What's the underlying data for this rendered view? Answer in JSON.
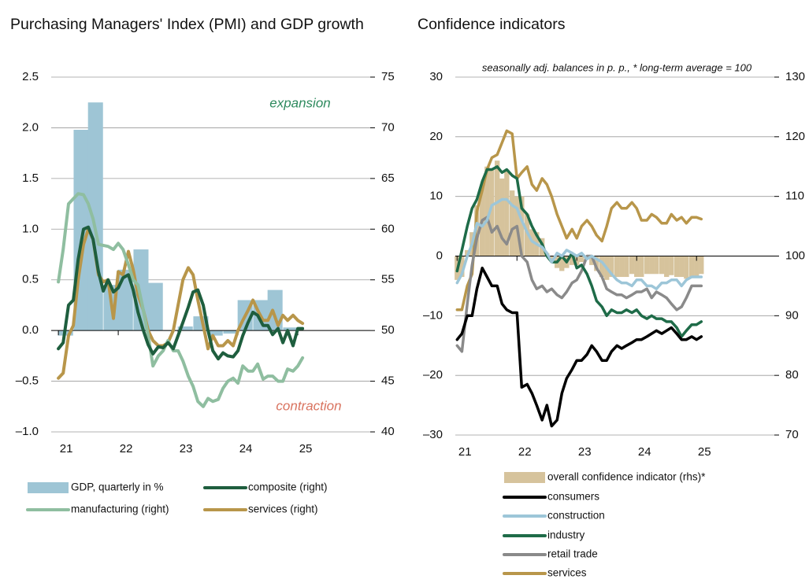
{
  "chart_data": [
    {
      "type": "combo",
      "title": "Purchasing Managers' Index (PMI) and GDP growth",
      "annotations": [
        {
          "text": "expansion",
          "color": "#2e8a5e"
        },
        {
          "text": "contraction",
          "color": "#d9735f"
        }
      ],
      "x": [
        2021.0,
        2021.08,
        2021.17,
        2021.25,
        2021.33,
        2021.42,
        2021.5,
        2021.58,
        2021.67,
        2021.75,
        2021.83,
        2021.92,
        2022.0,
        2022.08,
        2022.17,
        2022.25,
        2022.33,
        2022.42,
        2022.5,
        2022.58,
        2022.67,
        2022.75,
        2022.83,
        2022.92,
        2023.0,
        2023.08,
        2023.17,
        2023.25,
        2023.33,
        2023.42,
        2023.5,
        2023.58,
        2023.67,
        2023.75,
        2023.83,
        2023.92,
        2024.0,
        2024.08,
        2024.17,
        2024.25,
        2024.33,
        2024.42,
        2024.5,
        2024.58,
        2024.67,
        2024.75,
        2024.83,
        2024.92,
        2025.0,
        2025.08
      ],
      "xlim": [
        2020.88,
        2026.21
      ],
      "xticks": [
        {
          "value": 2021,
          "label": "21"
        },
        {
          "value": 2022,
          "label": "22"
        },
        {
          "value": 2023,
          "label": "23"
        },
        {
          "value": 2024,
          "label": "24"
        },
        {
          "value": 2025,
          "label": "25"
        }
      ],
      "ylim": [
        -1.0,
        2.5
      ],
      "yticks": [
        {
          "value": -1.0,
          "label": "–1.0"
        },
        {
          "value": -0.5,
          "label": "–0.5"
        },
        {
          "value": 0.0,
          "label": "0.0"
        },
        0.5,
        {
          "value": 1.0,
          "label": "1.0"
        },
        1.5,
        {
          "value": 2.0,
          "label": "2.0"
        },
        2.5
      ],
      "y2lim": [
        40,
        75
      ],
      "y2ticks": [
        40,
        45,
        50,
        55,
        60,
        65,
        70,
        75
      ],
      "grid": true,
      "series": [
        {
          "name": "GDP, quarterly in %",
          "type": "bar",
          "color": "#9ec5d5",
          "x": [
            2021.12,
            2021.38,
            2021.62,
            2021.88,
            2022.12,
            2022.38,
            2022.62,
            2022.88,
            2023.12,
            2023.38,
            2023.62,
            2023.88,
            2024.12,
            2024.38,
            2024.62,
            2024.88
          ],
          "values": [
            -0.05,
            1.98,
            2.25,
            0.45,
            0.6,
            0.8,
            0.47,
            0.0,
            0.04,
            0.14,
            -0.05,
            -0.03,
            0.3,
            0.3,
            0.4,
            0.03
          ]
        },
        {
          "name": "composite (right)",
          "type": "line",
          "axis": "y2",
          "color": "#1e5e3e",
          "values": [
            48.2,
            48.8,
            52.5,
            53.0,
            57.0,
            60.0,
            60.2,
            59.0,
            55.8,
            53.9,
            55.0,
            53.8,
            54.2,
            55.2,
            55.5,
            54.0,
            51.8,
            50.0,
            48.6,
            47.7,
            48.4,
            48.3,
            48.8,
            48.2,
            49.5,
            50.8,
            52.3,
            53.8,
            54.0,
            52.5,
            50.0,
            48.0,
            47.2,
            47.8,
            47.5,
            47.4,
            48.0,
            49.5,
            50.8,
            51.8,
            51.5,
            50.5,
            50.5,
            49.6,
            50.2,
            48.8,
            50.0,
            48.5,
            50.2,
            50.2
          ]
        },
        {
          "name": "manufacturing (right)",
          "type": "line",
          "axis": "y2",
          "color": "#8fbea0",
          "values": [
            54.8,
            58.0,
            62.5,
            63.0,
            63.5,
            63.4,
            62.5,
            61.0,
            58.5,
            58.4,
            58.3,
            58.0,
            58.6,
            58.0,
            56.5,
            55.0,
            54.5,
            52.0,
            49.5,
            46.5,
            47.5,
            48.0,
            49.0,
            48.0,
            48.0,
            47.0,
            45.5,
            44.5,
            43.0,
            42.5,
            43.3,
            43.0,
            43.2,
            44.3,
            45.0,
            45.3,
            44.8,
            46.5,
            46.0,
            46.0,
            46.7,
            45.2,
            45.5,
            45.5,
            45.0,
            45.0,
            46.2,
            46.0,
            46.5,
            47.3
          ]
        },
        {
          "name": "services (right)",
          "type": "line",
          "axis": "y2",
          "color": "#b8964a",
          "values": [
            45.3,
            45.8,
            49.5,
            50.5,
            55.0,
            58.5,
            60.0,
            59.0,
            55.5,
            54.8,
            55.0,
            51.2,
            55.8,
            55.5,
            57.8,
            56.0,
            53.5,
            52.0,
            50.0,
            49.0,
            48.5,
            48.5,
            48.8,
            50.0,
            52.5,
            55.0,
            56.2,
            55.5,
            53.0,
            50.5,
            48.2,
            49.5,
            48.5,
            48.5,
            49.0,
            48.5,
            50.0,
            51.0,
            52.0,
            53.0,
            52.0,
            51.0,
            51.0,
            52.0,
            50.5,
            51.5,
            51.0,
            51.5,
            51.0,
            50.7
          ]
        }
      ]
    },
    {
      "type": "combo",
      "title": "Confidence indicators",
      "subtitle": "seasonally adj. balances in p. p., * long-term average = 100",
      "x": [
        2021.0,
        2021.08,
        2021.17,
        2021.25,
        2021.33,
        2021.42,
        2021.5,
        2021.58,
        2021.67,
        2021.75,
        2021.83,
        2021.92,
        2022.0,
        2022.08,
        2022.17,
        2022.25,
        2022.33,
        2022.42,
        2022.5,
        2022.58,
        2022.67,
        2022.75,
        2022.83,
        2022.92,
        2023.0,
        2023.08,
        2023.17,
        2023.25,
        2023.33,
        2023.42,
        2023.5,
        2023.58,
        2023.67,
        2023.75,
        2023.83,
        2023.92,
        2024.0,
        2024.08,
        2024.17,
        2024.25,
        2024.33,
        2024.42,
        2024.5,
        2024.58,
        2024.67,
        2024.75,
        2024.83,
        2024.92,
        2025.0,
        2025.08
      ],
      "xlim": [
        2020.97,
        2026.3
      ],
      "xticks": [
        {
          "value": 2021,
          "label": "21"
        },
        {
          "value": 2022,
          "label": "22"
        },
        {
          "value": 2023,
          "label": "23"
        },
        {
          "value": 2024,
          "label": "24"
        },
        {
          "value": 2025,
          "label": "25"
        }
      ],
      "ylim": [
        -30,
        30
      ],
      "yticks": [
        {
          "value": -30,
          "label": "–30"
        },
        {
          "value": -20,
          "label": "–20"
        },
        {
          "value": -10,
          "label": "–10"
        },
        0,
        10,
        20,
        30
      ],
      "y2lim": [
        70,
        130
      ],
      "y2ticks": [
        70,
        80,
        90,
        100,
        110,
        120,
        130
      ],
      "grid": true,
      "series": [
        {
          "name": "overall confidence indicator (rhs)*",
          "type": "bar",
          "axis": "y2",
          "color": "#d6c39c",
          "values": [
            96,
            96.5,
            101,
            104,
            108.5,
            112,
            115,
            114.5,
            116,
            113,
            114.5,
            111,
            110,
            110,
            107,
            104.5,
            104,
            103,
            100.5,
            99.5,
            98,
            97.5,
            98,
            98.5,
            98.5,
            99,
            99.5,
            98.5,
            97.5,
            96.5,
            96,
            96.5,
            96.5,
            96.5,
            96.5,
            97,
            96.5,
            96.5,
            97,
            97,
            97,
            97,
            96.5,
            96.8,
            96.5,
            96.5,
            96.2,
            96.5,
            96.5,
            97
          ]
        },
        {
          "name": "consumers",
          "type": "line",
          "color": "#000000",
          "values": [
            -14,
            -13,
            -10,
            -10,
            -5.5,
            -2,
            -3.5,
            -5,
            -5,
            -8,
            -9,
            -9.5,
            -9.5,
            -22,
            -21.5,
            -23,
            -25,
            -27.5,
            -25,
            -28.5,
            -27.5,
            -23,
            -20.5,
            -19,
            -17.5,
            -17.5,
            -16.5,
            -15,
            -16,
            -17.5,
            -17.5,
            -16,
            -15,
            -15.5,
            -15,
            -14.5,
            -14,
            -14,
            -13.5,
            -13,
            -12.5,
            -13,
            -12.5,
            -12,
            -13,
            -14,
            -14,
            -13.5,
            -14,
            -13.5
          ]
        },
        {
          "name": "construction",
          "type": "line",
          "color": "#9dc6d8",
          "values": [
            -4.5,
            -3,
            0,
            2,
            5.5,
            5,
            6,
            8.5,
            9,
            9.5,
            9.5,
            8.5,
            8,
            6,
            4,
            2.5,
            2,
            1.5,
            0.5,
            -1,
            0.5,
            0,
            1,
            0.5,
            0,
            0.5,
            -0.5,
            0,
            -0.5,
            -1,
            -2,
            -3,
            -4,
            -4.5,
            -4.5,
            -5,
            -4,
            -4,
            -5,
            -5,
            -5.5,
            -4.5,
            -4.5,
            -4,
            -4,
            -5,
            -4,
            -3.5,
            -3.5,
            -3.5
          ]
        },
        {
          "name": "industry",
          "type": "line",
          "color": "#1e6b48",
          "values": [
            -2.5,
            1,
            5,
            8,
            9.5,
            12.5,
            14.5,
            14.5,
            15,
            14,
            14.5,
            13.5,
            13,
            8,
            7,
            5,
            3.5,
            2,
            0,
            -1,
            -1,
            0,
            -1,
            0.5,
            -2,
            -1.5,
            -3,
            -5,
            -7.5,
            -8.5,
            -10,
            -9,
            -9.5,
            -9.5,
            -9,
            -9.5,
            -9,
            -10,
            -10.5,
            -10,
            -10.5,
            -10.5,
            -11,
            -11,
            -12,
            -13.5,
            -12.5,
            -11.5,
            -11.5,
            -11
          ]
        },
        {
          "name": "retail trade",
          "type": "line",
          "color": "#8a8a8a",
          "values": [
            -15,
            -16,
            -8,
            -1.5,
            3,
            6,
            6.5,
            4,
            5,
            3,
            2,
            4.5,
            5,
            0,
            -1,
            -4,
            -5.5,
            -5,
            -6,
            -5.5,
            -6.5,
            -7,
            -6,
            -4.5,
            -4,
            -2.5,
            0,
            0,
            -2,
            -3.5,
            -5.5,
            -6,
            -6.5,
            -6.5,
            -7,
            -6.5,
            -6,
            -6,
            -5.5,
            -7,
            -6,
            -6.5,
            -7,
            -8,
            -9,
            -8.5,
            -7,
            -5,
            -5,
            -5
          ]
        },
        {
          "name": "services",
          "type": "line",
          "color": "#b8964a",
          "values": [
            -9,
            -9,
            -5,
            -3,
            7.5,
            11,
            14.5,
            16.5,
            17,
            19,
            21,
            20.5,
            13,
            14,
            15,
            12,
            11,
            13,
            12,
            10,
            7,
            5,
            3,
            4.5,
            3,
            5,
            6,
            5,
            3.5,
            2.5,
            5,
            8,
            9,
            8,
            8,
            9,
            8,
            6,
            6,
            7,
            6.5,
            5.5,
            5.5,
            7,
            6,
            6.5,
            5.5,
            6.5,
            6.5,
            6.2
          ]
        }
      ]
    }
  ]
}
